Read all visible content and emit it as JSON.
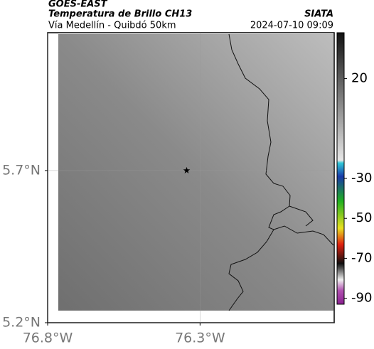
{
  "chart_data": {
    "type": "map",
    "title": "GOES-EAST",
    "subtitle": "Temperatura de Brillo CH13",
    "source": "SIATA",
    "region": "Vía Medellín - Quibdó 50km",
    "datetime": "2024-07-10 09:09",
    "xlim": [
      -76.8,
      -75.86
    ],
    "ylim": [
      5.2,
      6.153
    ],
    "xticks": [
      {
        "value": -76.8,
        "label": "76.8°W"
      },
      {
        "value": -76.3,
        "label": "76.3°W"
      }
    ],
    "yticks": [
      {
        "value": 5.2,
        "label": "5.2°N"
      },
      {
        "value": 5.7,
        "label": "5.7°N"
      }
    ],
    "grid": true,
    "marker": {
      "lon": -76.344,
      "lat": 5.7
    },
    "colorbar": {
      "range": [
        43,
        -93
      ],
      "ticks": [
        20,
        -30,
        -50,
        -70,
        -90
      ]
    }
  }
}
